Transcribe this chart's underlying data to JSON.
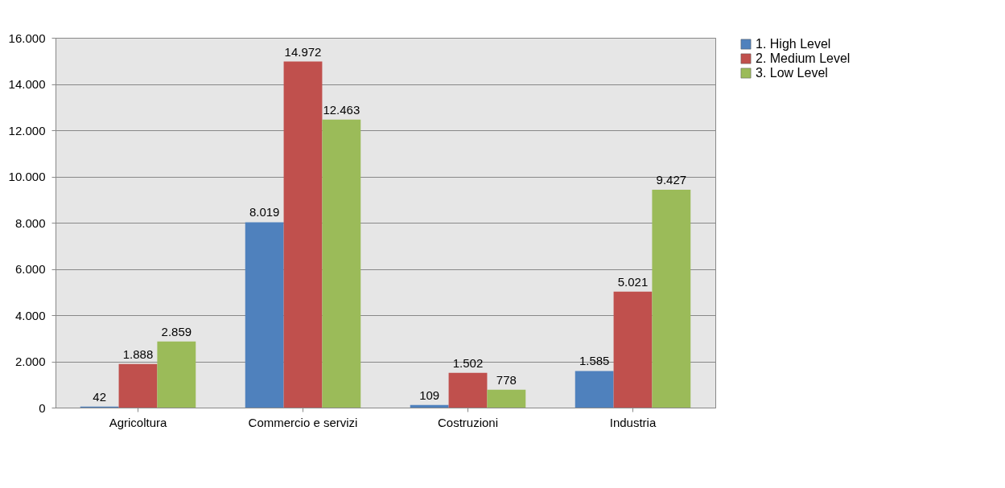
{
  "chart_data": {
    "type": "bar",
    "categories": [
      "Agricoltura",
      "Commercio e servizi",
      "Costruzioni",
      "Industria"
    ],
    "series": [
      {
        "name": "1. High Level",
        "color": "#4f81bd",
        "values": [
          42,
          8019,
          109,
          1585
        ],
        "value_labels": [
          "42",
          "8.019",
          "109",
          "1.585"
        ]
      },
      {
        "name": "2. Medium Level",
        "color": "#c0504d",
        "values": [
          1888,
          14972,
          1502,
          5021
        ],
        "value_labels": [
          "1.888",
          "14.972",
          "1.502",
          "5.021"
        ]
      },
      {
        "name": "3. Low Level",
        "color": "#9bbb59",
        "values": [
          2859,
          12463,
          778,
          9427
        ],
        "value_labels": [
          "2.859",
          "12.463",
          "778",
          "9.427"
        ]
      }
    ],
    "ylim": [
      0,
      16000
    ],
    "yticks": [
      {
        "value": 0,
        "label": "0"
      },
      {
        "value": 2000,
        "label": "2.000"
      },
      {
        "value": 4000,
        "label": "4.000"
      },
      {
        "value": 6000,
        "label": "6.000"
      },
      {
        "value": 8000,
        "label": "8.000"
      },
      {
        "value": 10000,
        "label": "10.000"
      },
      {
        "value": 12000,
        "label": "12.000"
      },
      {
        "value": 14000,
        "label": "14.000"
      },
      {
        "value": 16000,
        "label": "16.000"
      }
    ],
    "grid": "y",
    "legend": "right"
  }
}
